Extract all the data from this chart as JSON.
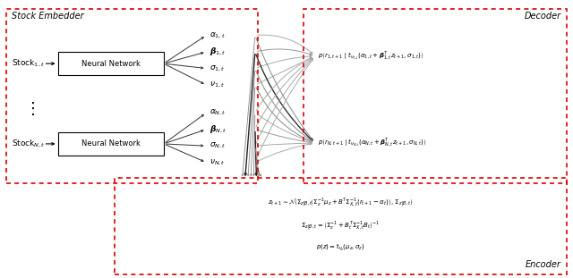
{
  "fig_width": 6.4,
  "fig_height": 3.11,
  "dpi": 100,
  "bg_color": "#ffffff",
  "box_color": "#dd0000",
  "text_color": "#000000",
  "label_fontsize": 6.5,
  "title_fontsize": 7.0,
  "nn_fontsize": 6.0,
  "eq_fontsize": 5.2,
  "stock_embedder_label": "Stock Embedder",
  "decoder_label": "Decoder",
  "encoder_label": "Encoder",
  "stock1_label": "Stock$_{1,t}$",
  "stockN_label": "Stock$_{N,t}$",
  "dots_label": "$\\vdots$",
  "nn_label": "Neural Network",
  "params1": [
    "$\\alpha_{1,t}$",
    "$\\boldsymbol{\\beta}_{1,t}$",
    "$\\sigma_{1,t}$",
    "$\\nu_{1,t}$"
  ],
  "paramsN": [
    "$\\alpha_{N,t}$",
    "$\\boldsymbol{\\beta}_{N,t}$",
    "$\\sigma_{N,t}$",
    "$\\nu_{N,t}$"
  ],
  "decoder1_text": "$p\\left(r_{1,t+1}\\mid t_{\\nu_{1,t}}(\\alpha_{1,t}+\\boldsymbol{\\beta}_{1,t}^T z_{t+1},\\sigma_{1,t})\\right)$",
  "decoderN_text": "$p\\left(r_{N,t+1}\\mid t_{\\nu_{N,t}}(\\alpha_{N,t}+\\boldsymbol{\\beta}_{N,t}^T z_{t+1},\\sigma_{N,t})\\right)$",
  "encoder_eq1": "$z_{t+1}\\sim\\mathcal{N}\\!\\left(\\Sigma_{z|B,t}\\!\\left(\\Sigma_z^{-1}\\mu_z+B^T\\Sigma_{X,t}^{-1}(r_{t+1}-\\alpha_t)\\right),\\,\\Sigma_{z|B,t}\\right)$",
  "encoder_eq2": "$\\Sigma_{z|B,t}=\\left(\\Sigma_z^{-1}+B_t^T\\Sigma_{X,t}^{-1}B_t\\right)^{-1}$",
  "encoder_eq3": "$p(z)=\\mathrm{t}_{\\nu_z}(\\mu_z,\\sigma_z)$"
}
